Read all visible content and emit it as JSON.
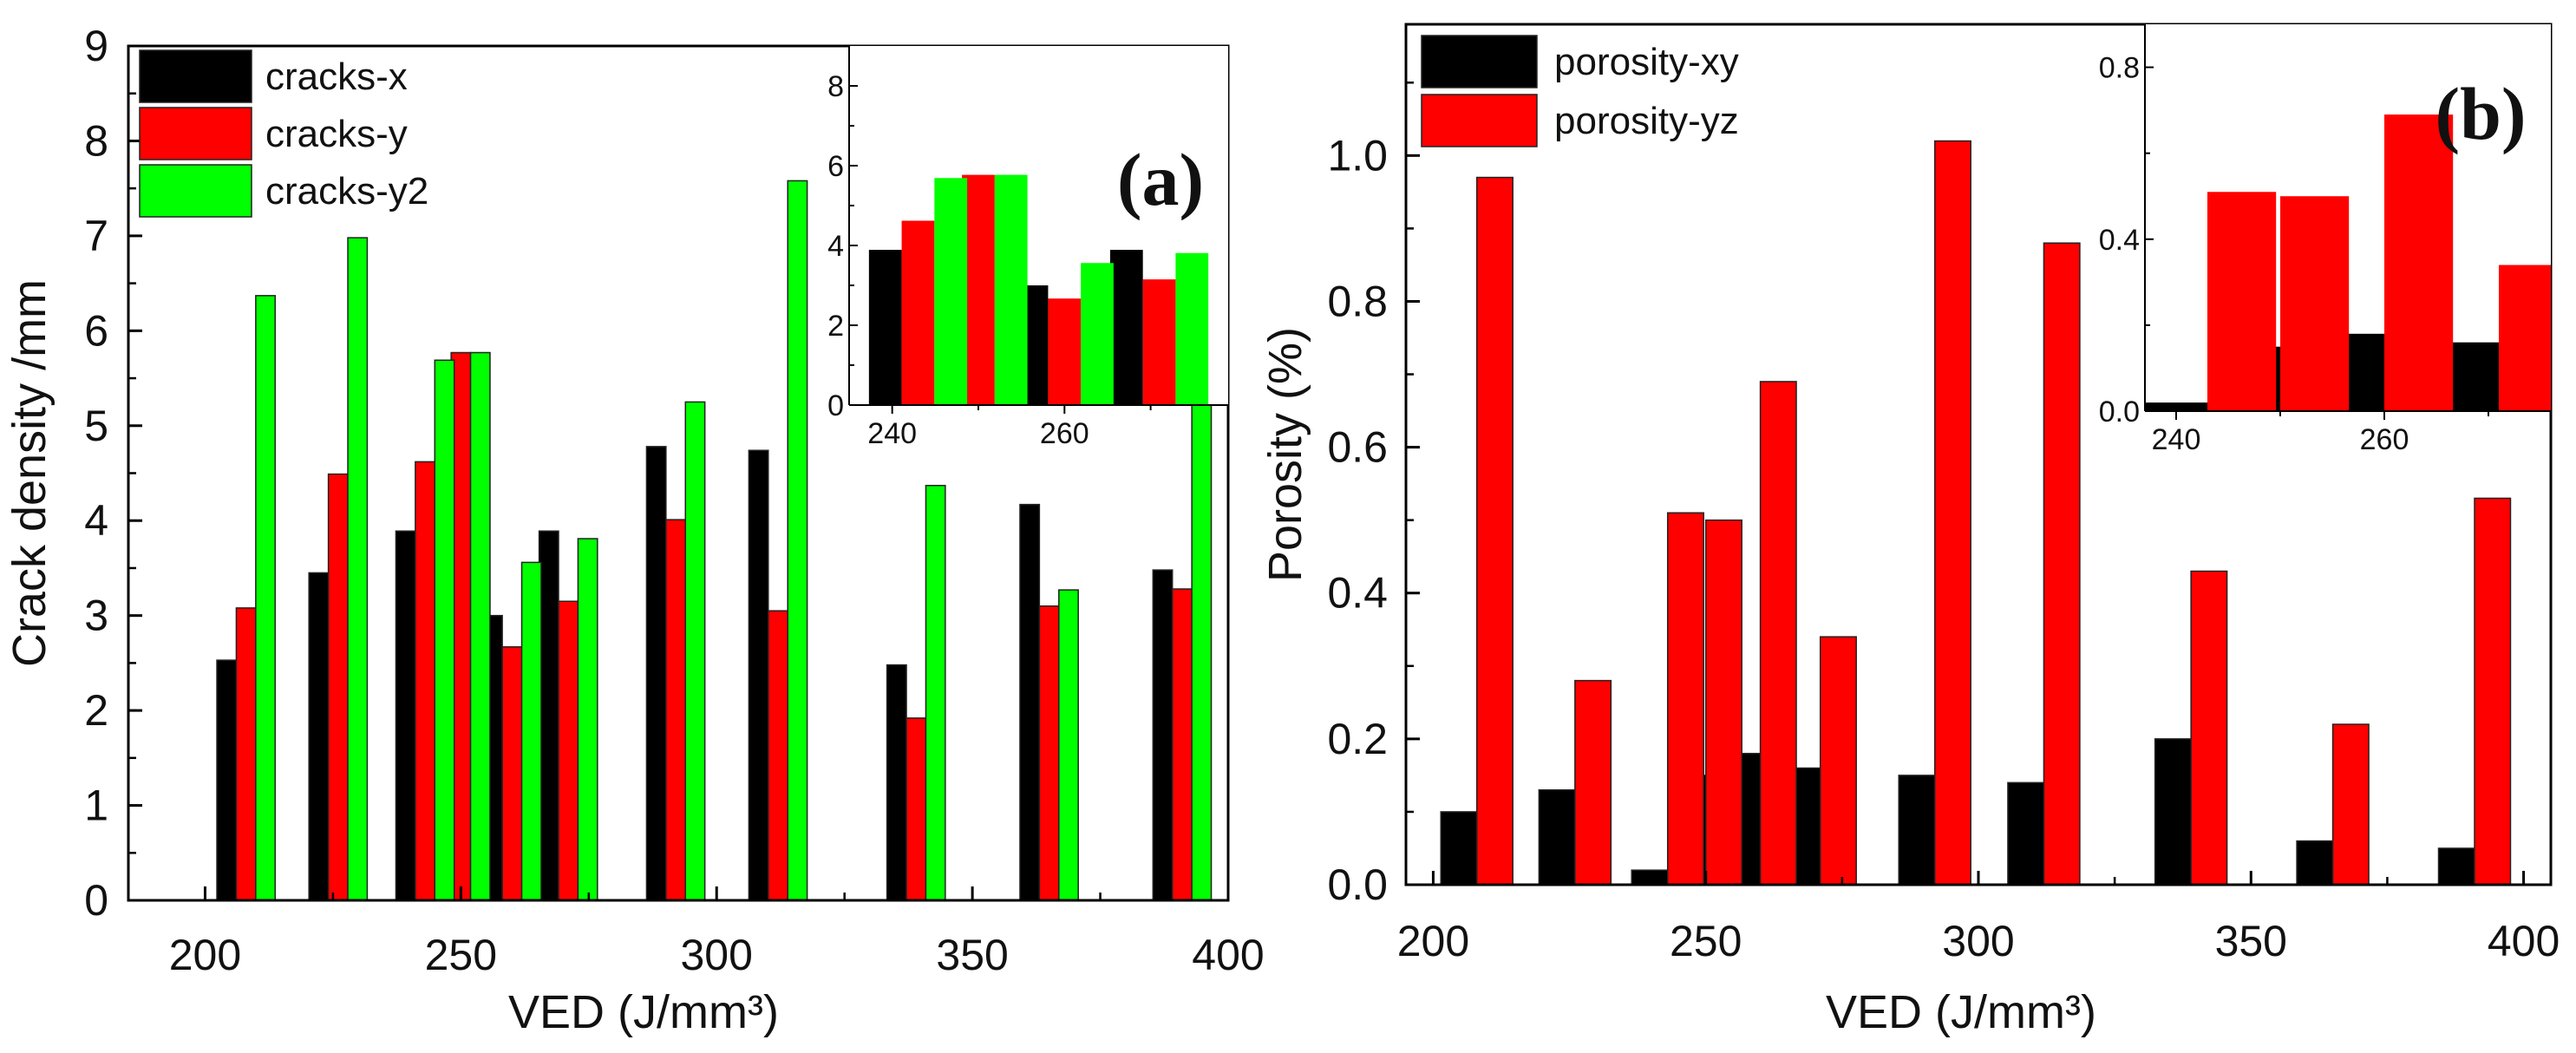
{
  "chart_data": [
    {
      "type": "bar",
      "panel_label": "(a)",
      "xlabel": "VED (J/mm³)",
      "ylabel": "Crack density /mm",
      "xlim": [
        185,
        400
      ],
      "ylim": [
        0,
        9
      ],
      "xticks": [
        200,
        250,
        300,
        350,
        400
      ],
      "yticks": [
        0,
        1,
        2,
        3,
        4,
        5,
        6,
        7,
        8,
        9
      ],
      "grid": false,
      "legend_position": "top-left",
      "x": [
        208,
        226,
        243,
        250,
        260,
        271,
        292,
        312,
        339,
        365,
        391
      ],
      "series": [
        {
          "name": "cracks-x",
          "color": "#000000",
          "values": [
            2.53,
            3.45,
            3.89,
            null,
            3.0,
            3.89,
            4.78,
            4.74,
            2.48,
            4.17,
            3.48
          ]
        },
        {
          "name": "cracks-y",
          "color": "#ff0000",
          "values": [
            3.08,
            4.49,
            4.62,
            5.77,
            2.67,
            3.15,
            4.01,
            3.05,
            1.92,
            3.1,
            3.28
          ]
        },
        {
          "name": "cracks-y2",
          "color": "#00ff00",
          "values": [
            6.37,
            6.98,
            5.69,
            5.77,
            3.56,
            3.81,
            5.25,
            7.58,
            4.37,
            3.27,
            6.0
          ]
        }
      ],
      "inset": {
        "xlim": [
          235,
          279
        ],
        "ylim": [
          0,
          9
        ],
        "xticks": [
          240,
          260
        ],
        "yticks": [
          0,
          2,
          4,
          6,
          8
        ]
      }
    },
    {
      "type": "bar",
      "panel_label": "(b)",
      "xlabel": "VED (J/mm³)",
      "ylabel": "Porosity (%)",
      "xlim": [
        195,
        405
      ],
      "ylim": [
        0,
        1.18
      ],
      "xticks": [
        200,
        250,
        300,
        350,
        400
      ],
      "yticks": [
        "0.0",
        "0.2",
        "0.4",
        "0.6",
        "0.8",
        "1.0"
      ],
      "grid": false,
      "legend_position": "top-left",
      "x": [
        208,
        226,
        243,
        250,
        260,
        271,
        292,
        312,
        339,
        365,
        391
      ],
      "series": [
        {
          "name": "porosity-xy",
          "color": "#000000",
          "values": [
            0.1,
            0.13,
            0.02,
            0.15,
            0.18,
            0.16,
            0.15,
            0.14,
            0.2,
            0.06,
            0.05
          ]
        },
        {
          "name": "porosity-yz",
          "color": "#ff0000",
          "values": [
            0.97,
            0.28,
            0.51,
            0.5,
            0.69,
            0.34,
            1.02,
            0.88,
            0.43,
            0.22,
            0.53
          ]
        }
      ],
      "inset": {
        "xlim": [
          237,
          276
        ],
        "ylim": [
          0,
          0.9
        ],
        "xticks": [
          240,
          260
        ],
        "yticks": [
          "0.0",
          "0.4",
          "0.8"
        ]
      }
    }
  ]
}
